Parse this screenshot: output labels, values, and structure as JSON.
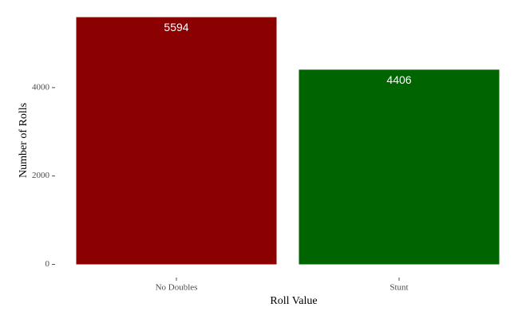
{
  "chart_data": {
    "type": "bar",
    "categories": [
      "No Doubles",
      "Stunt"
    ],
    "values": [
      5594,
      4406
    ],
    "colors": [
      "#8b0000",
      "#006400"
    ],
    "xlabel": "Roll Value",
    "ylabel": "Number of Rolls",
    "ylim": [
      -280,
      5874
    ],
    "yticks": [
      0,
      2000,
      4000
    ],
    "grid": false
  }
}
